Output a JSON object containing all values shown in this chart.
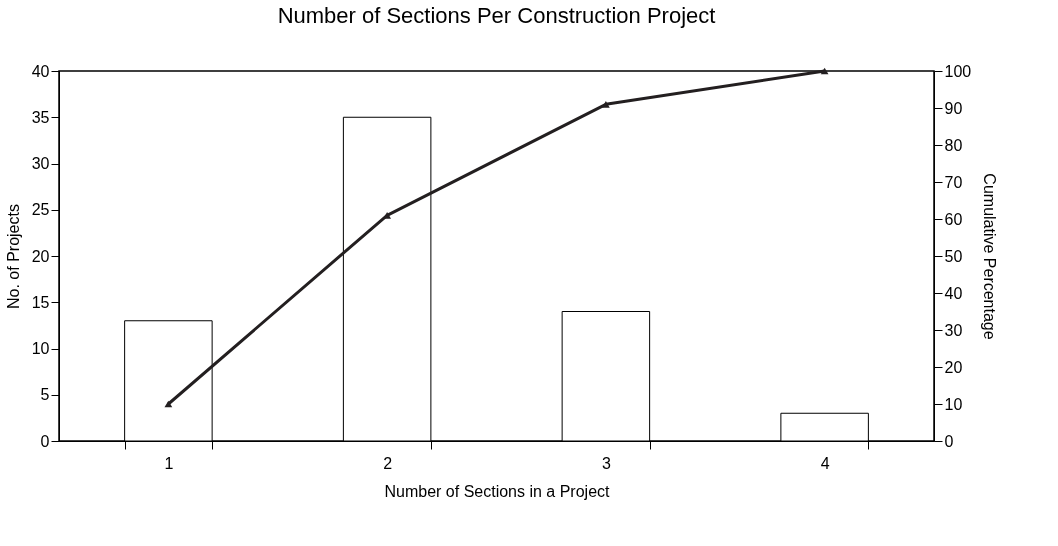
{
  "chart_data": {
    "type": "bar",
    "title": "Number of Sections Per Construction Project",
    "xlabel": "Number of Sections in a Project",
    "ylabel": "No. of Projects",
    "y2label": "Cumulative Percentage",
    "categories": [
      "1",
      "2",
      "3",
      "4"
    ],
    "series": [
      {
        "color": "#ffffff",
        "values": [
          13,
          35,
          14,
          3
        ]
      },
      {
        "type": "line",
        "axis": "y2",
        "color": "#231f20",
        "values": [
          10,
          61,
          91,
          100
        ],
        "marker": "triangle",
        "line_style": "solid"
      }
    ],
    "ylim": [
      0,
      40
    ],
    "yticks": [
      0,
      5,
      10,
      15,
      20,
      25,
      30,
      35,
      40
    ],
    "y2lim": [
      0,
      100
    ],
    "y2ticks": [
      0,
      10,
      20,
      30,
      40,
      50,
      60,
      70,
      80,
      90,
      100
    ],
    "grid": false
  }
}
